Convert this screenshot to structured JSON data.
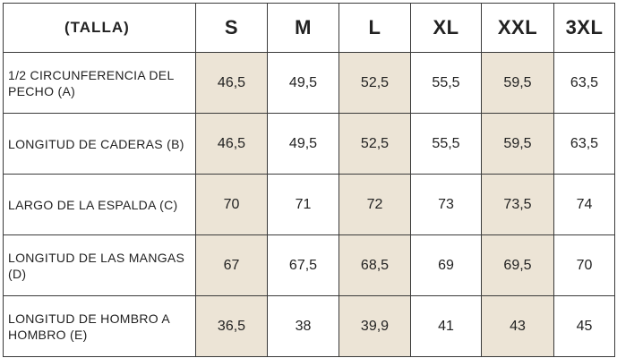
{
  "table": {
    "header_label": "(TALLA)",
    "sizes": [
      "S",
      "M",
      "L",
      "XL",
      "XXL",
      "3XL"
    ],
    "rows": [
      {
        "label": "1/2 CIRCUNFERENCIA DEL PECHO (A)",
        "values": [
          "46,5",
          "49,5",
          "52,5",
          "55,5",
          "59,5",
          "63,5"
        ]
      },
      {
        "label": "LONGITUD DE CADERAS (B)",
        "values": [
          "46,5",
          "49,5",
          "52,5",
          "55,5",
          "59,5",
          "63,5"
        ]
      },
      {
        "label": "LARGO DE LA ESPALDA (C)",
        "values": [
          "70",
          "71",
          "72",
          "73",
          "73,5",
          "74"
        ]
      },
      {
        "label": "LONGITUD DE LAS MANGAS (D)",
        "values": [
          "67",
          "67,5",
          "68,5",
          "69",
          "69,5",
          "70"
        ]
      },
      {
        "label": "LONGITUD DE HOMBRO A HOMBRO (E)",
        "values": [
          "36,5",
          "38",
          "39,9",
          "41",
          "43",
          "45"
        ]
      }
    ]
  },
  "colors": {
    "shaded_column": "#ece4d6",
    "border": "#3a3a3a",
    "text": "#222222"
  }
}
